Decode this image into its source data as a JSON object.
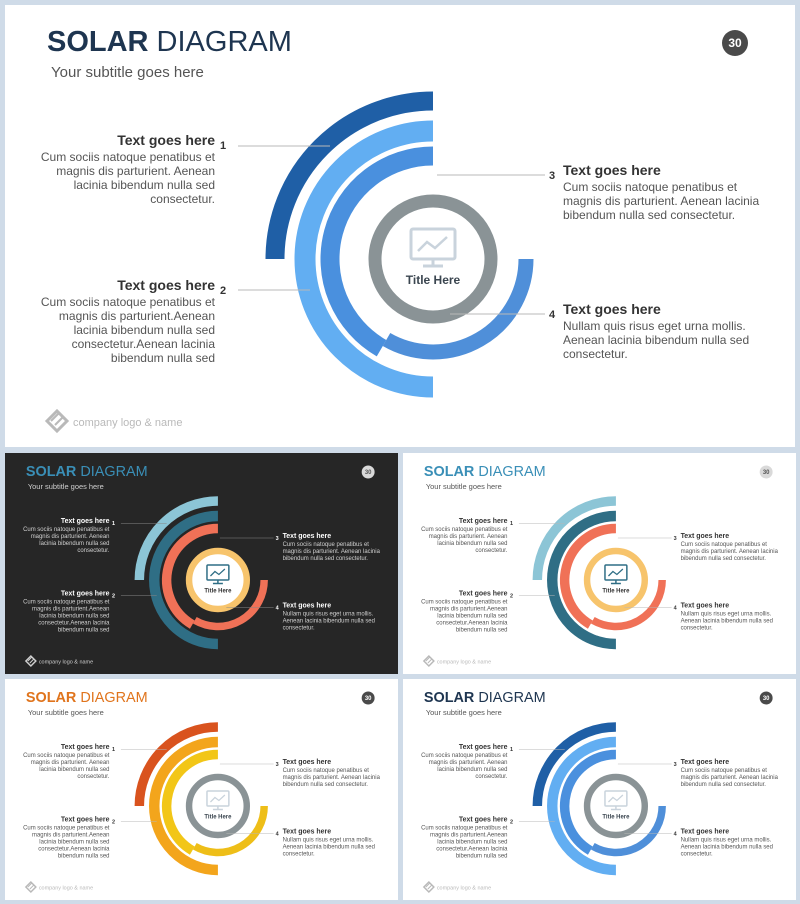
{
  "slides": [
    {
      "theme": "blue-large",
      "title_bold": "SOLAR",
      "title_rest": " DIAGRAM",
      "subtitle": "Your subtitle goes here",
      "page_number": "30",
      "center_title": "Title Here",
      "logo_text": "company logo & name",
      "items": [
        {
          "number": "1",
          "heading": "Text goes here",
          "lines": [
            "Cum sociis natoque penatibus et",
            "magnis dis parturient. Aenean",
            "lacinia bibendum nulla sed",
            "consectetur."
          ]
        },
        {
          "number": "2",
          "heading": "Text goes here",
          "lines": [
            "Cum sociis natoque penatibus et",
            "magnis dis parturient.Aenean",
            "lacinia bibendum nulla sed",
            "consectetur.Aenean lacinia",
            "bibendum nulla sed"
          ]
        },
        {
          "number": "3",
          "heading": "Text goes here",
          "lines": [
            "Cum sociis natoque penatibus et",
            "magnis dis parturient. Aenean lacinia",
            "bibendum nulla sed consectetur."
          ]
        },
        {
          "number": "4",
          "heading": "Text goes here",
          "lines": [
            "Nullam quis risus eget urna mollis.",
            "Aenean lacinia bibendum nulla sed",
            "consectetur."
          ]
        }
      ],
      "colors": {
        "bg": "#ffffff",
        "title_bold": "#1e3550",
        "title_rest": "#1e3550",
        "text": "#555555",
        "heading": "#333333",
        "badge": "#4a4a4a",
        "arcs": [
          "#1f5fa6",
          "#62aef2",
          "#4a90de",
          "#4f8fd9"
        ],
        "ring": "#8a9396",
        "icon": "#c9d3dc",
        "center_text": "#3b4650"
      }
    },
    {
      "theme": "dark",
      "title_bold": "SOLAR",
      "title_rest": " DIAGRAM",
      "subtitle": "Your subtitle goes here",
      "page_number": "30",
      "center_title": "Title Here",
      "logo_text": "company logo & name",
      "items": [
        {
          "number": "1",
          "heading": "Text goes here",
          "lines": [
            "Cum sociis natoque penatibus et",
            "magnis dis parturient. Aenean",
            "lacinia bibendum nulla sed",
            "consectetur."
          ]
        },
        {
          "number": "2",
          "heading": "Text goes here",
          "lines": [
            "Cum sociis natoque penatibus et",
            "magnis dis parturient.Aenean",
            "lacinia bibendum nulla sed",
            "consectetur.Aenean lacinia",
            "bibendum nulla sed"
          ]
        },
        {
          "number": "3",
          "heading": "Text goes here",
          "lines": [
            "Cum sociis natoque penatibus et",
            "magnis dis parturient. Aenean lacinia",
            "bibendum nulla sed consectetur."
          ]
        },
        {
          "number": "4",
          "heading": "Text goes here",
          "lines": [
            "Nullam quis risus eget urna mollis.",
            "Aenean lacinia bibendum nulla sed",
            "consectetur."
          ]
        }
      ],
      "colors": {
        "bg": "#262626",
        "title_bold": "#3a8fb7",
        "title_rest": "#3a8fb7",
        "text": "#d0d0d0",
        "heading": "#ffffff",
        "badge": "#d9d9d9",
        "arcs": [
          "#8cc5d6",
          "#2f6e85",
          "#f07157",
          "#f07157"
        ],
        "ring": "#f7c46c",
        "icon": "#2f6e85",
        "center_text": "#333333"
      }
    },
    {
      "theme": "teal",
      "title_bold": "SOLAR",
      "title_rest": " DIAGRAM",
      "subtitle": "Your subtitle goes here",
      "page_number": "30",
      "center_title": "Title Here",
      "logo_text": "company logo & name",
      "items": [
        {
          "number": "1",
          "heading": "Text goes here",
          "lines": [
            "Cum sociis natoque penatibus et",
            "magnis dis parturient. Aenean",
            "lacinia bibendum nulla sed",
            "consectetur."
          ]
        },
        {
          "number": "2",
          "heading": "Text goes here",
          "lines": [
            "Cum sociis natoque penatibus et",
            "magnis dis parturient.Aenean",
            "lacinia bibendum nulla sed",
            "consectetur.Aenean lacinia",
            "bibendum nulla sed"
          ]
        },
        {
          "number": "3",
          "heading": "Text goes here",
          "lines": [
            "Cum sociis natoque penatibus et",
            "magnis dis parturient. Aenean lacinia",
            "bibendum nulla sed consectetur."
          ]
        },
        {
          "number": "4",
          "heading": "Text goes here",
          "lines": [
            "Nullam quis risus eget urna mollis.",
            "Aenean lacinia bibendum nulla sed",
            "consectetur."
          ]
        }
      ],
      "colors": {
        "bg": "#ffffff",
        "title_bold": "#3a8fb7",
        "title_rest": "#3a8fb7",
        "text": "#555555",
        "heading": "#333333",
        "badge": "#d9d9d9",
        "arcs": [
          "#8cc5d6",
          "#2f6e85",
          "#f07157",
          "#f07157"
        ],
        "ring": "#f7c46c",
        "icon": "#2f6e85",
        "center_text": "#333333"
      }
    },
    {
      "theme": "orange",
      "title_bold": "SOLAR",
      "title_rest": " DIAGRAM",
      "subtitle": "Your subtitle goes here",
      "page_number": "30",
      "center_title": "Title Here",
      "logo_text": "company logo & name",
      "items": [
        {
          "number": "1",
          "heading": "Text goes here",
          "lines": [
            "Cum sociis natoque penatibus et",
            "magnis dis parturient. Aenean",
            "lacinia bibendum nulla sed",
            "consectetur."
          ]
        },
        {
          "number": "2",
          "heading": "Text goes here",
          "lines": [
            "Cum sociis natoque penatibus et",
            "magnis dis parturient.Aenean",
            "lacinia bibendum nulla sed",
            "consectetur.Aenean lacinia",
            "bibendum nulla sed"
          ]
        },
        {
          "number": "3",
          "heading": "Text goes here",
          "lines": [
            "Cum sociis natoque penatibus et",
            "magnis dis parturient. Aenean lacinia",
            "bibendum nulla sed consectetur."
          ]
        },
        {
          "number": "4",
          "heading": "Text goes here",
          "lines": [
            "Nullam quis risus eget urna mollis.",
            "Aenean lacinia bibendum nulla sed",
            "consectetur."
          ]
        }
      ],
      "colors": {
        "bg": "#ffffff",
        "title_bold": "#e0741c",
        "title_rest": "#e0741c",
        "text": "#555555",
        "heading": "#333333",
        "badge": "#4a4a4a",
        "arcs": [
          "#d9531e",
          "#f3a51c",
          "#f2c617",
          "#eebe18"
        ],
        "ring": "#8a9396",
        "icon": "#c9d3dc",
        "center_text": "#3b4650"
      }
    },
    {
      "theme": "blue-small",
      "title_bold": "SOLAR",
      "title_rest": " DIAGRAM",
      "subtitle": "Your subtitle goes here",
      "page_number": "30",
      "center_title": "Title Here",
      "logo_text": "company logo & name",
      "items": [
        {
          "number": "1",
          "heading": "Text goes here",
          "lines": [
            "Cum sociis natoque penatibus et",
            "magnis dis parturient. Aenean",
            "lacinia bibendum nulla sed",
            "consectetur."
          ]
        },
        {
          "number": "2",
          "heading": "Text goes here",
          "lines": [
            "Cum sociis natoque penatibus et",
            "magnis dis parturient.Aenean",
            "lacinia bibendum nulla sed",
            "consectetur.Aenean lacinia",
            "bibendum nulla sed"
          ]
        },
        {
          "number": "3",
          "heading": "Text goes here",
          "lines": [
            "Cum sociis natoque penatibus et",
            "magnis dis parturient. Aenean lacinia",
            "bibendum nulla sed consectetur."
          ]
        },
        {
          "number": "4",
          "heading": "Text goes here",
          "lines": [
            "Nullam quis risus eget urna mollis.",
            "Aenean lacinia bibendum nulla sed",
            "consectetur."
          ]
        }
      ],
      "colors": {
        "bg": "#ffffff",
        "title_bold": "#1e3550",
        "title_rest": "#1e3550",
        "text": "#555555",
        "heading": "#333333",
        "badge": "#4a4a4a",
        "arcs": [
          "#1f5fa6",
          "#62aef2",
          "#4a90de",
          "#4f8fd9"
        ],
        "ring": "#8a9396",
        "icon": "#c9d3dc",
        "center_text": "#3b4650"
      }
    }
  ]
}
